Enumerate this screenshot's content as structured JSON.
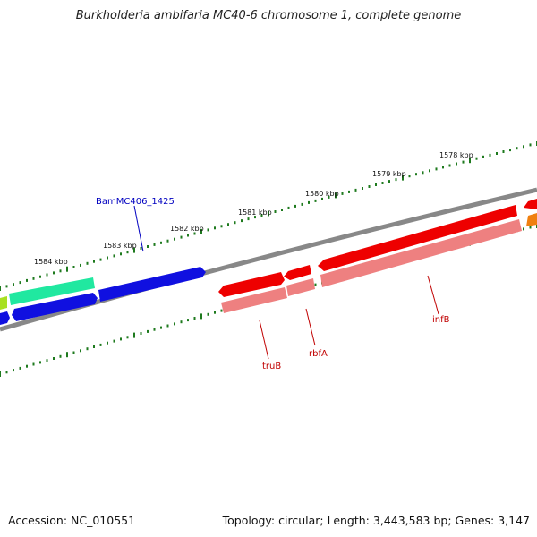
{
  "title": "Burkholderia ambifaria MC40-6 chromosome 1, complete genome",
  "footer": {
    "accession": "Accession: NC_010551",
    "topology": "Topology: circular; Length: 3,443,583 bp; Genes: 3,147"
  },
  "scale_labels": [
    "1584 kbp",
    "1583 kbp",
    "1582 kbp",
    "1581 kbp",
    "1580 kbp",
    "1579 kbp",
    "1578 kbp"
  ],
  "gene_labels": {
    "bam": "BamMC406_1425",
    "trub": "truB",
    "rbfa": "rbfA",
    "infb": "infB"
  },
  "colors": {
    "backbone": "#888888",
    "tick": "#1e7a1e",
    "blue_gene": "#1010e0",
    "red_gene": "#ee0000",
    "pink_gene": "#ee8080",
    "teal_gene": "#20e8a0",
    "orange_gene": "#f08010",
    "blue_label": "#0000c0",
    "red_label": "#c00000"
  }
}
